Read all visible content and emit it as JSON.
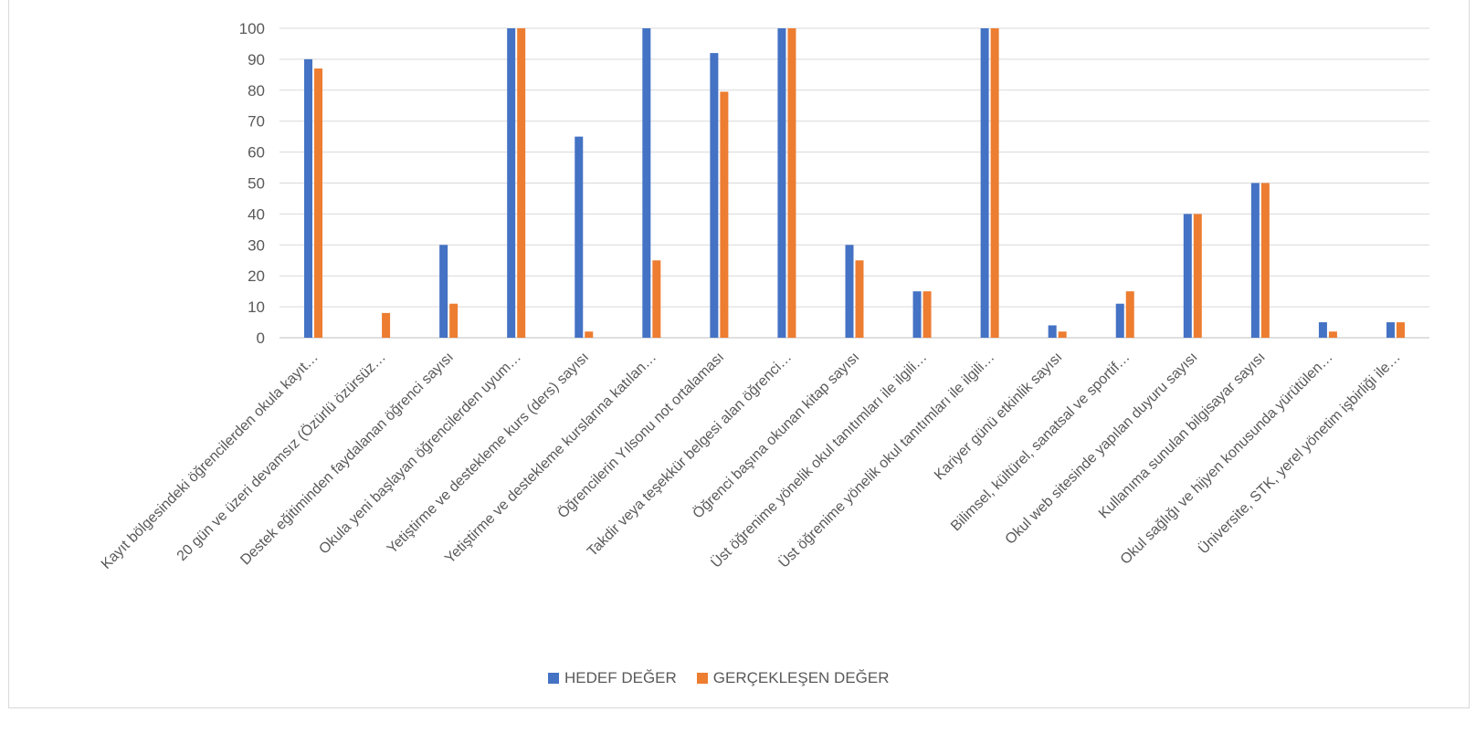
{
  "chart_data": {
    "type": "bar",
    "title": "",
    "xlabel": "",
    "ylabel": "",
    "ylim": [
      0,
      100
    ],
    "yticks": [
      0,
      10,
      20,
      30,
      40,
      50,
      60,
      70,
      80,
      90,
      100
    ],
    "grid": true,
    "legend_position": "bottom",
    "categories": [
      "Kayıt bölgesindeki öğrencilerden okula kayıt…",
      "20 gün ve üzeri devamsız (Özürlü özürsüz…",
      "Destek eğitiminden faydalanan öğrenci sayısı",
      "Okula yeni başlayan öğrencilerden uyum…",
      "Yetiştirme ve destekleme kurs (ders) sayısı",
      "Yetiştirme ve destekleme kurslarına katılan…",
      "Öğrencilerin Yılsonu not ortalaması",
      "Takdir veya teşekkür belgesi alan öğrenci…",
      "Öğrenci başına okunan kitap sayısı",
      "Üst öğrenime yönelik okul tanıtımları ile ilgili…",
      "Üst öğrenime yönelik okul tanıtımları ile ilgili…",
      "Kariyer günü etkinlik sayısı",
      "Bilimsel, kültürel, sanatsal ve sportif…",
      "Okul web sitesinde yapılan duyuru sayısı",
      "Kullanıma sunulan bilgisayar sayısı",
      "Okul sağlığı ve hijyen konusunda yürütülen…",
      "Üniversite, STK, yerel yönetim işbirliği ile…"
    ],
    "series": [
      {
        "name": "HEDEF DEĞER",
        "color": "#4472c4",
        "values": [
          90,
          0,
          30,
          100,
          65,
          100,
          92,
          100,
          30,
          15,
          100,
          4,
          11,
          40,
          50,
          5,
          5
        ]
      },
      {
        "name": "GERÇEKLEŞEN DEĞER",
        "color": "#ed7d31",
        "values": [
          87,
          8,
          11,
          100,
          2,
          25,
          79.5,
          100,
          25,
          15,
          100,
          2,
          15,
          40,
          50,
          2,
          5
        ]
      }
    ]
  }
}
